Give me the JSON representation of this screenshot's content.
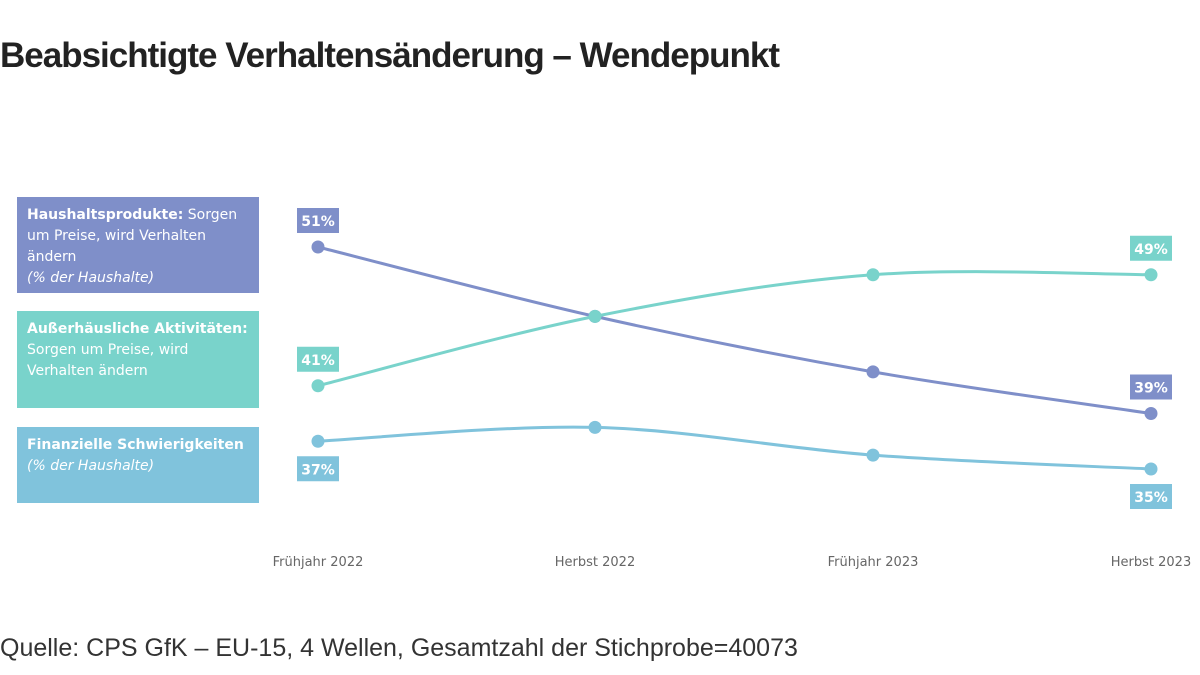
{
  "title": "Beabsichtigte Verhaltensänderung – Wendepunkt",
  "source": "Quelle: CPS GfK – EU-15, 4 Wellen, Gesamtzahl der Stichprobe=40073",
  "legend": [
    {
      "bold": "Haushaltsprodukte:",
      "text": " Sorgen um Preise, wird Verhalten ändern",
      "note": "(% der Haushalte)"
    },
    {
      "bold": "Außerhäusliche Aktivitäten:",
      "text": " Sorgen um Preise, wird Verhalten ändern",
      "note": ""
    },
    {
      "bold": "Finanzielle Schwierigkeiten",
      "text": "",
      "note": "(% der Haushalte)"
    }
  ],
  "chart_data": {
    "type": "line",
    "title": "Beabsichtigte Verhaltensänderung – Wendepunkt",
    "categories": [
      "Frühjahr 2022",
      "Herbst 2022",
      "Frühjahr 2023",
      "Herbst 2023"
    ],
    "unit": "%",
    "ylim": [
      35,
      51
    ],
    "grid": false,
    "legend_position": "left",
    "series": [
      {
        "name": "Haushaltsprodukte: Sorgen um Preise, wird Verhalten ändern",
        "values": [
          51,
          46,
          42,
          39
        ],
        "color": "#7f8fc9",
        "labels": [
          "51%",
          null,
          null,
          "39%"
        ],
        "label_pos": [
          "above",
          null,
          null,
          "above"
        ]
      },
      {
        "name": "Außerhäusliche Aktivitäten: Sorgen um Preise, wird Verhalten ändern",
        "values": [
          41,
          46,
          49,
          49
        ],
        "color": "#79d3cb",
        "labels": [
          "41%",
          null,
          null,
          "49%"
        ],
        "label_pos": [
          "above",
          null,
          null,
          "above"
        ]
      },
      {
        "name": "Finanzielle Schwierigkeiten",
        "values": [
          37,
          38,
          36,
          35
        ],
        "color": "#80c3dc",
        "labels": [
          "37%",
          null,
          null,
          "35%"
        ],
        "label_pos": [
          "below",
          null,
          null,
          "below"
        ]
      }
    ]
  }
}
